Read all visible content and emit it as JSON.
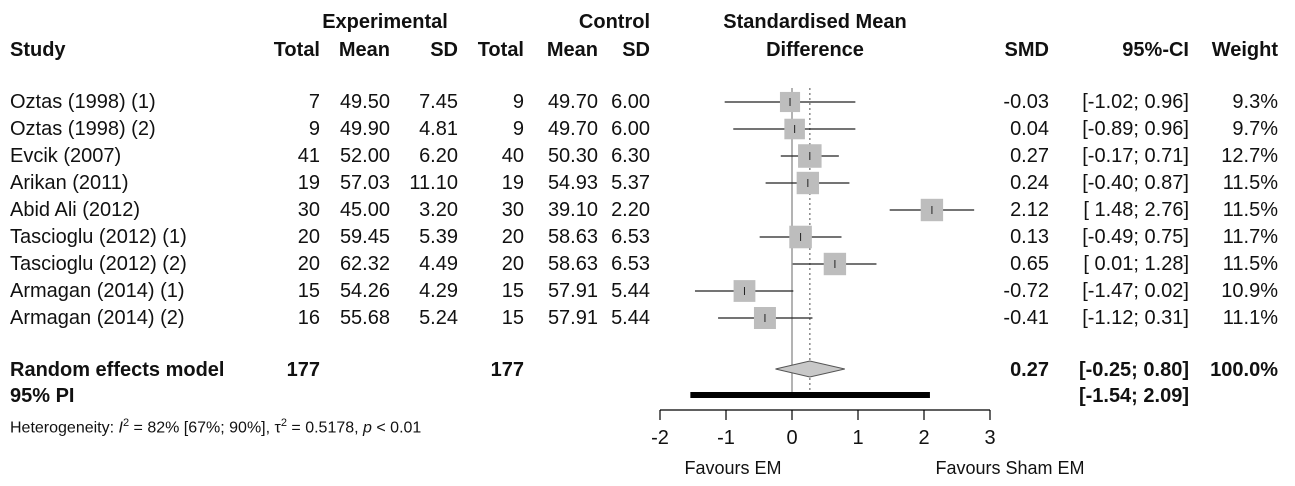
{
  "chart_data": {
    "type": "forest",
    "headers": {
      "experimental": "Experimental",
      "control": "Control",
      "smd_title_line1": "Standardised Mean",
      "smd_title_line2": "Difference",
      "study": "Study",
      "total": "Total",
      "mean": "Mean",
      "sd": "SD",
      "smd": "SMD",
      "ci": "95%-CI",
      "weight": "Weight"
    },
    "studies": [
      {
        "study": "Oztas (1998) (1)",
        "e_total": "7",
        "e_mean": "49.50",
        "e_sd": "7.45",
        "c_total": "9",
        "c_mean": "49.70",
        "c_sd": "6.00",
        "smd_text": "-0.03",
        "ci_text": "[-1.02; 0.96]",
        "weight_text": "9.3%",
        "smd": -0.03,
        "lower": -1.02,
        "upper": 0.96,
        "weight": 9.3
      },
      {
        "study": "Oztas (1998) (2)",
        "e_total": "9",
        "e_mean": "49.90",
        "e_sd": "4.81",
        "c_total": "9",
        "c_mean": "49.70",
        "c_sd": "6.00",
        "smd_text": "0.04",
        "ci_text": "[-0.89; 0.96]",
        "weight_text": "9.7%",
        "smd": 0.04,
        "lower": -0.89,
        "upper": 0.96,
        "weight": 9.7
      },
      {
        "study": "Evcik (2007)",
        "e_total": "41",
        "e_mean": "52.00",
        "e_sd": "6.20",
        "c_total": "40",
        "c_mean": "50.30",
        "c_sd": "6.30",
        "smd_text": "0.27",
        "ci_text": "[-0.17; 0.71]",
        "weight_text": "12.7%",
        "smd": 0.27,
        "lower": -0.17,
        "upper": 0.71,
        "weight": 12.7
      },
      {
        "study": "Arikan (2011)",
        "e_total": "19",
        "e_mean": "57.03",
        "e_sd": "11.10",
        "c_total": "19",
        "c_mean": "54.93",
        "c_sd": "5.37",
        "smd_text": "0.24",
        "ci_text": "[-0.40; 0.87]",
        "weight_text": "11.5%",
        "smd": 0.24,
        "lower": -0.4,
        "upper": 0.87,
        "weight": 11.5
      },
      {
        "study": "Abid Ali (2012)",
        "e_total": "30",
        "e_mean": "45.00",
        "e_sd": "3.20",
        "c_total": "30",
        "c_mean": "39.10",
        "c_sd": "2.20",
        "smd_text": "2.12",
        "ci_text": "[ 1.48; 2.76]",
        "weight_text": "11.5%",
        "smd": 2.12,
        "lower": 1.48,
        "upper": 2.76,
        "weight": 11.5
      },
      {
        "study": "Tascioglu (2012) (1)",
        "e_total": "20",
        "e_mean": "59.45",
        "e_sd": "5.39",
        "c_total": "20",
        "c_mean": "58.63",
        "c_sd": "6.53",
        "smd_text": "0.13",
        "ci_text": "[-0.49; 0.75]",
        "weight_text": "11.7%",
        "smd": 0.13,
        "lower": -0.49,
        "upper": 0.75,
        "weight": 11.7
      },
      {
        "study": "Tascioglu (2012) (2)",
        "e_total": "20",
        "e_mean": "62.32",
        "e_sd": "4.49",
        "c_total": "20",
        "c_mean": "58.63",
        "c_sd": "6.53",
        "smd_text": "0.65",
        "ci_text": "[ 0.01; 1.28]",
        "weight_text": "11.5%",
        "smd": 0.65,
        "lower": 0.01,
        "upper": 1.28,
        "weight": 11.5
      },
      {
        "study": "Armagan (2014) (1)",
        "e_total": "15",
        "e_mean": "54.26",
        "e_sd": "4.29",
        "c_total": "15",
        "c_mean": "57.91",
        "c_sd": "5.44",
        "smd_text": "-0.72",
        "ci_text": "[-1.47; 0.02]",
        "weight_text": "10.9%",
        "smd": -0.72,
        "lower": -1.47,
        "upper": 0.02,
        "weight": 10.9
      },
      {
        "study": "Armagan (2014) (2)",
        "e_total": "16",
        "e_mean": "55.68",
        "e_sd": "5.24",
        "c_total": "15",
        "c_mean": "57.91",
        "c_sd": "5.44",
        "smd_text": "-0.41",
        "ci_text": "[-1.12; 0.31]",
        "weight_text": "11.1%",
        "smd": -0.41,
        "lower": -1.12,
        "upper": 0.31,
        "weight": 11.1
      }
    ],
    "summary": {
      "label": "Random effects model",
      "e_total": "177",
      "c_total": "177",
      "smd_text": "0.27",
      "ci_text": "[-0.25; 0.80]",
      "weight_text": "100.0%",
      "smd": 0.27,
      "lower": -0.25,
      "upper": 0.8
    },
    "prediction_interval": {
      "label": "95% PI",
      "ci_text": "[-1.54; 2.09]",
      "lower": -1.54,
      "upper": 2.09
    },
    "heterogeneity": {
      "prefix": "Heterogeneity: ",
      "i2_symbol": "I",
      "i2_text": " = 82% [67%; 90%], ",
      "tau2_symbol": "τ",
      "tau2_text": " = 0.5178, ",
      "p_symbol": "p",
      "p_text": " < 0.01"
    },
    "x_axis": {
      "ticks": [
        -2,
        -1,
        0,
        1,
        2,
        3
      ],
      "tick_labels": [
        "-2",
        "-1",
        "0",
        "1",
        "2",
        "3"
      ],
      "xlim": [
        -2,
        3
      ],
      "left_label": "Favours EM",
      "right_label": "Favours Sham EM"
    },
    "reference_line": 0,
    "summary_line": 0.27,
    "colors": {
      "square": "#bdbdbd",
      "line": "#222222",
      "diamond": "#c8c8c8",
      "summary_dotted": "#888888"
    }
  }
}
